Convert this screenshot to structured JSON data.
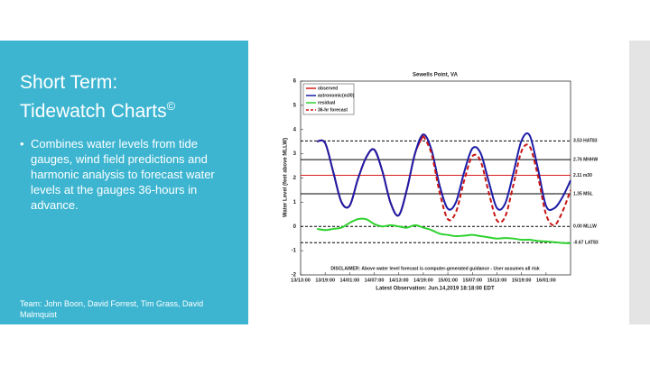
{
  "slide": {
    "title_line1": "Short Term:",
    "title_line2": "Tidewatch Charts",
    "title_mark": "©",
    "bullets": [
      "Combines water levels from tide gauges, wind field predictions and harmonic analysis to forecast water levels at the gauges 36-hours in advance."
    ],
    "footer": "Team: John Boon, David Forrest, Tim Grass, David Malmquist"
  },
  "chart_data": {
    "type": "line",
    "title": "Sewells Point, VA",
    "y_label": "Water Level (feet above MLLW)",
    "x_label": "Latest Observation: Jun.14,2019 18:18:00 EDT",
    "annotation": "DISCLAIMER: Above water level forecast is computer-generated guidance - User assumes all risk",
    "ylim": [
      -2,
      6
    ],
    "yticks": [
      -2,
      -1,
      0,
      1,
      2,
      3,
      4,
      5,
      6
    ],
    "grid": false,
    "legend": "upper-left",
    "categories": [
      "13/13:00",
      null,
      null,
      "13/19:00",
      null,
      null,
      "14/01:00",
      null,
      null,
      "14/07:00",
      null,
      null,
      "14/13:00",
      null,
      null,
      "14/19:00",
      null,
      null,
      "15/01:00",
      null,
      null,
      "15/07:00",
      null,
      null,
      "15/13:00",
      null,
      null,
      "15/19:00",
      null,
      null,
      "16/01:00",
      null,
      null,
      null
    ],
    "series": [
      {
        "name": "observed",
        "color": "#d91e1e",
        "style": "solid",
        "values": [
          null,
          null,
          3.51,
          3.44,
          2.23,
          1.0,
          0.86,
          1.95,
          2.84,
          3.17,
          2.27,
          0.97,
          0.46,
          1.54,
          3.03,
          3.75,
          null,
          null,
          null,
          null,
          null,
          null,
          null,
          null,
          null,
          null,
          null,
          null,
          null,
          null,
          null,
          null,
          null,
          null
        ]
      },
      {
        "name": "astronomic(m30)",
        "color": "#1c1ca8",
        "style": "solid",
        "values": [
          null,
          null,
          3.51,
          3.44,
          2.23,
          1.0,
          0.86,
          1.95,
          2.84,
          3.17,
          2.27,
          0.97,
          0.46,
          1.54,
          3.03,
          3.8,
          3.16,
          1.68,
          0.73,
          1.01,
          2.25,
          3.22,
          3.03,
          1.85,
          0.76,
          0.94,
          2.18,
          3.54,
          3.76,
          2.4,
          0.85,
          0.75,
          1.2,
          1.9
        ]
      },
      {
        "name": "residual",
        "color": "#2ed12e",
        "style": "solid",
        "values": [
          null,
          null,
          -0.1,
          -0.15,
          -0.1,
          -0.05,
          0.15,
          0.3,
          0.3,
          0.1,
          0.0,
          0.05,
          0.0,
          -0.05,
          0.05,
          -0.05,
          -0.15,
          -0.3,
          -0.35,
          -0.4,
          -0.38,
          -0.35,
          -0.4,
          -0.45,
          -0.5,
          -0.48,
          -0.5,
          -0.55,
          -0.55,
          -0.6,
          -0.62,
          -0.65,
          -0.68,
          -0.7
        ]
      },
      {
        "name": "36-hr forecast",
        "color": "#c81414",
        "style": "dashed",
        "values": [
          null,
          null,
          null,
          null,
          null,
          null,
          null,
          null,
          null,
          null,
          null,
          null,
          null,
          null,
          null,
          3.75,
          3.0,
          1.4,
          0.3,
          0.6,
          1.9,
          2.9,
          2.7,
          1.4,
          0.25,
          0.4,
          1.7,
          3.1,
          3.3,
          2.1,
          0.5,
          0.05,
          0.6,
          1.5
        ]
      }
    ],
    "reference_lines": [
      {
        "value": 3.53,
        "label": "3.53 HAT83",
        "color": "#000000",
        "style": "dashed"
      },
      {
        "value": 2.76,
        "label": "2.76 MHHW",
        "color": "#000000",
        "style": "solid"
      },
      {
        "value": 2.11,
        "label": "2.11 m30",
        "color": "#d91e1e",
        "style": "solid"
      },
      {
        "value": 1.35,
        "label": "1.35 MSL",
        "color": "#000000",
        "style": "solid"
      },
      {
        "value": 0,
        "label": "0.00 MLLW",
        "color": "#000000",
        "style": "dashed"
      },
      {
        "value": -0.67,
        "label": "-0.67 LAT83",
        "color": "#000000",
        "style": "dashed"
      }
    ]
  }
}
